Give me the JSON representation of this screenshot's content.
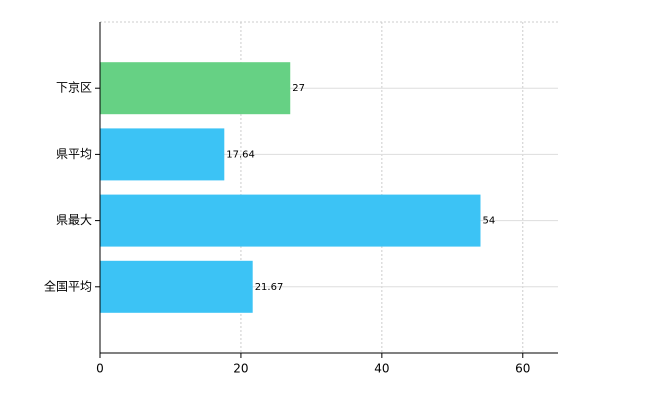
{
  "chart_data": {
    "type": "barh",
    "categories": [
      "下京区",
      "県平均",
      "県最大",
      "全国平均"
    ],
    "values": [
      27,
      17.64,
      54,
      21.67
    ],
    "colors": [
      "#66d184",
      "#3cc3f5",
      "#3cc3f5",
      "#3cc3f5"
    ],
    "xlim": [
      0,
      65
    ],
    "xticks": [
      0,
      20,
      40,
      60
    ],
    "grid": true
  }
}
